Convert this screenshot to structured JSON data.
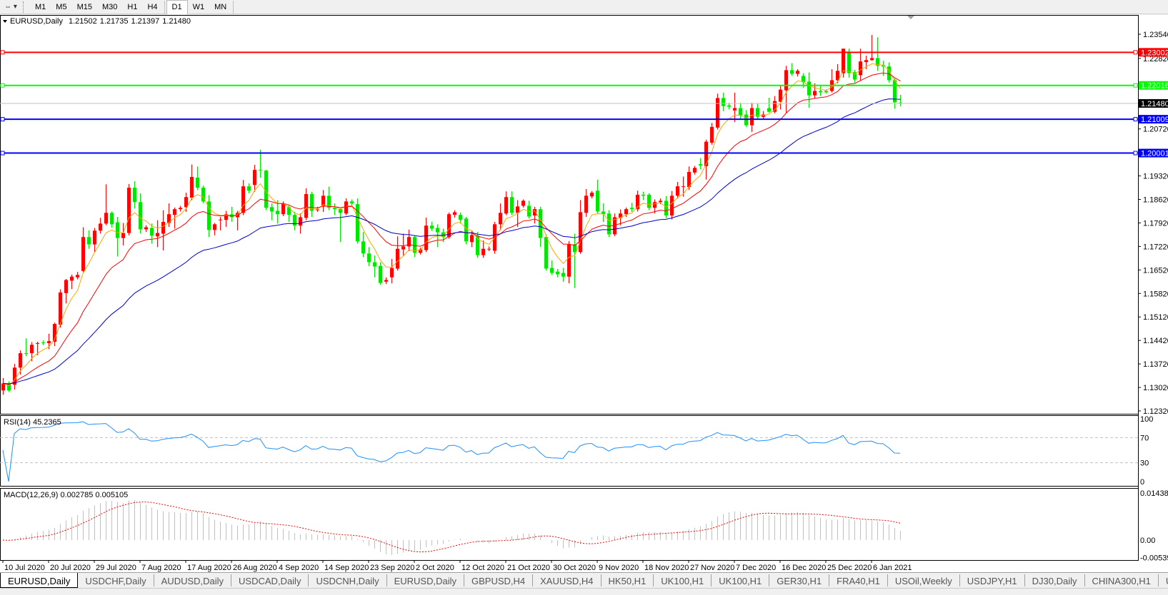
{
  "toolbar": {
    "timeframes": [
      "M1",
      "M5",
      "M15",
      "M30",
      "H1",
      "H4",
      "D1",
      "W1",
      "MN"
    ],
    "active": "D1"
  },
  "chart_header": {
    "symbol": "EURUSD,Daily",
    "open": "1.21502",
    "high": "1.21735",
    "low": "1.21397",
    "close": "1.21480"
  },
  "colors": {
    "bull": "#ff0000",
    "bear": "#00e600",
    "ma_fast": "#ffa500",
    "ma_mid": "#ff0000",
    "ma_slow": "#0000c8",
    "rsi": "#1e90ff",
    "macd_hist": "#c0c0c0",
    "macd_signal": "#ff0000"
  },
  "levels": [
    {
      "price": 1.23002,
      "label": "1.23002",
      "color": "#ff0000"
    },
    {
      "price": 1.22016,
      "label": "1.22016",
      "color": "#00ff00"
    },
    {
      "price": 1.21009,
      "label": "1.21009",
      "color": "#0000ff"
    },
    {
      "price": 1.20001,
      "label": "1.20001",
      "color": "#0000ff"
    }
  ],
  "current_price": {
    "price": 1.2148,
    "label": "1.21480"
  },
  "rsi": {
    "label": "RSI(14) 45.2365",
    "axis": [
      "100",
      "70",
      "30",
      "0"
    ]
  },
  "macd": {
    "label": "MACD(12,26,9) 0.002785 0.005105",
    "axis": [
      "0.014384",
      "0.00",
      "-0.00539"
    ]
  },
  "chart_data": {
    "type": "candlestick",
    "title": "EURUSD,Daily",
    "y_ticks": [
      "1.23540",
      "1.22820",
      "1.20720",
      "1.19320",
      "1.18620",
      "1.17920",
      "1.17220",
      "1.16520",
      "1.15820",
      "1.15120",
      "1.14420",
      "1.13720",
      "1.13020",
      "1.12320"
    ],
    "ylim": [
      1.1232,
      1.2354
    ],
    "x_labels": [
      "10 Jul 2020",
      "20 Jul 2020",
      "29 Jul 2020",
      "7 Aug 2020",
      "17 Aug 2020",
      "26 Aug 2020",
      "4 Sep 2020",
      "14 Sep 2020",
      "23 Sep 2020",
      "2 Oct 2020",
      "12 Oct 2020",
      "21 Oct 2020",
      "30 Oct 2020",
      "9 Nov 2020",
      "18 Nov 2020",
      "27 Nov 2020",
      "7 Dec 2020",
      "16 Dec 2020",
      "25 Dec 2020",
      "6 Jan 2021"
    ],
    "ohlc_fields": [
      "open",
      "high",
      "low",
      "close"
    ],
    "candles": [
      [
        1.1293,
        1.133,
        1.128,
        1.1314
      ],
      [
        1.1314,
        1.132,
        1.1288,
        1.1293
      ],
      [
        1.131,
        1.1372,
        1.1296,
        1.1361
      ],
      [
        1.1361,
        1.1412,
        1.134,
        1.1404
      ],
      [
        1.1404,
        1.1448,
        1.1395,
        1.1402
      ],
      [
        1.1404,
        1.1437,
        1.138,
        1.1429
      ],
      [
        1.1432,
        1.1438,
        1.1398,
        1.1434
      ],
      [
        1.1436,
        1.1442,
        1.1428,
        1.1435
      ],
      [
        1.1434,
        1.1462,
        1.1416,
        1.144
      ],
      [
        1.1438,
        1.1495,
        1.1425,
        1.1491
      ],
      [
        1.1489,
        1.1594,
        1.148,
        1.1585
      ],
      [
        1.1583,
        1.1625,
        1.1552,
        1.1622
      ],
      [
        1.162,
        1.1638,
        1.1595,
        1.1632
      ],
      [
        1.163,
        1.1646,
        1.1624,
        1.1637
      ],
      [
        1.1649,
        1.1779,
        1.1643,
        1.175
      ],
      [
        1.175,
        1.177,
        1.1715,
        1.1728
      ],
      [
        1.1728,
        1.1777,
        1.1705,
        1.1769
      ],
      [
        1.1769,
        1.1807,
        1.176,
        1.179
      ],
      [
        1.179,
        1.1907,
        1.1785,
        1.1822
      ],
      [
        1.1822,
        1.1826,
        1.1778,
        1.1788
      ],
      [
        1.1794,
        1.181,
        1.1692,
        1.1747
      ],
      [
        1.1747,
        1.1792,
        1.1725,
        1.1762
      ],
      [
        1.1762,
        1.1908,
        1.1755,
        1.1897
      ],
      [
        1.1897,
        1.1916,
        1.1835,
        1.1854
      ],
      [
        1.1854,
        1.188,
        1.176,
        1.1773
      ],
      [
        1.1773,
        1.1785,
        1.1765,
        1.1779
      ],
      [
        1.1777,
        1.179,
        1.173,
        1.1754
      ],
      [
        1.1752,
        1.18,
        1.172,
        1.1762
      ],
      [
        1.176,
        1.183,
        1.171,
        1.1795
      ],
      [
        1.1792,
        1.185,
        1.178,
        1.1818
      ],
      [
        1.1816,
        1.1838,
        1.1775,
        1.1833
      ],
      [
        1.1833,
        1.1843,
        1.1826,
        1.1837
      ],
      [
        1.1839,
        1.1882,
        1.1825,
        1.1869
      ],
      [
        1.1867,
        1.1966,
        1.186,
        1.1929
      ],
      [
        1.1927,
        1.196,
        1.189,
        1.1897
      ],
      [
        1.1897,
        1.1903,
        1.185,
        1.1856
      ],
      [
        1.1856,
        1.1875,
        1.175,
        1.1771
      ],
      [
        1.1771,
        1.1792,
        1.1755,
        1.1788
      ],
      [
        1.1801,
        1.181,
        1.177,
        1.1802
      ],
      [
        1.1801,
        1.1828,
        1.178,
        1.1818
      ],
      [
        1.1818,
        1.184,
        1.1795,
        1.1809
      ],
      [
        1.1809,
        1.1828,
        1.177,
        1.1822
      ],
      [
        1.1822,
        1.192,
        1.1815,
        1.1901
      ],
      [
        1.1901,
        1.191,
        1.188,
        1.1888
      ],
      [
        1.1905,
        1.1965,
        1.1885,
        1.195
      ],
      [
        1.195,
        1.201,
        1.1927,
        1.1948
      ],
      [
        1.1948,
        1.195,
        1.183,
        1.1837
      ],
      [
        1.1839,
        1.185,
        1.18,
        1.1826
      ],
      [
        1.1828,
        1.186,
        1.179,
        1.1818
      ],
      [
        1.1818,
        1.1856,
        1.1812,
        1.185
      ],
      [
        1.1839,
        1.1845,
        1.1795,
        1.1816
      ],
      [
        1.1816,
        1.1825,
        1.177,
        1.1784
      ],
      [
        1.1784,
        1.182,
        1.176,
        1.1809
      ],
      [
        1.1807,
        1.1895,
        1.18,
        1.1878
      ],
      [
        1.1878,
        1.1885,
        1.181,
        1.1828
      ],
      [
        1.1831,
        1.184,
        1.1825,
        1.1832
      ],
      [
        1.1843,
        1.189,
        1.1825,
        1.1873
      ],
      [
        1.1873,
        1.19,
        1.183,
        1.1837
      ],
      [
        1.1837,
        1.185,
        1.1815,
        1.1833
      ],
      [
        1.1833,
        1.1835,
        1.1735,
        1.1822
      ],
      [
        1.182,
        1.1865,
        1.1815,
        1.1856
      ],
      [
        1.1856,
        1.1862,
        1.1845,
        1.185
      ],
      [
        1.1848,
        1.1865,
        1.173,
        1.1737
      ],
      [
        1.1737,
        1.1765,
        1.169,
        1.1701
      ],
      [
        1.1701,
        1.172,
        1.1663,
        1.1675
      ],
      [
        1.1675,
        1.1695,
        1.163,
        1.1662
      ],
      [
        1.1664,
        1.1675,
        1.1608,
        1.1613
      ],
      [
        1.1617,
        1.163,
        1.161,
        1.1622
      ],
      [
        1.163,
        1.1685,
        1.1612,
        1.1658
      ],
      [
        1.1656,
        1.1752,
        1.165,
        1.1715
      ],
      [
        1.1713,
        1.176,
        1.1695,
        1.1722
      ],
      [
        1.1722,
        1.1772,
        1.1708,
        1.175
      ],
      [
        1.175,
        1.1755,
        1.169,
        1.1703
      ],
      [
        1.1703,
        1.1718,
        1.1698,
        1.1713
      ],
      [
        1.1711,
        1.1808,
        1.1705,
        1.1784
      ],
      [
        1.1784,
        1.1796,
        1.1768,
        1.1775
      ],
      [
        1.1777,
        1.1788,
        1.172,
        1.1764
      ],
      [
        1.1764,
        1.1775,
        1.1735,
        1.175
      ],
      [
        1.175,
        1.1823,
        1.1745,
        1.1818
      ],
      [
        1.1816,
        1.183,
        1.1808,
        1.1824
      ],
      [
        1.1816,
        1.1823,
        1.179,
        1.1801
      ],
      [
        1.1805,
        1.181,
        1.1728,
        1.1737
      ],
      [
        1.1735,
        1.177,
        1.172,
        1.1756
      ],
      [
        1.1754,
        1.1765,
        1.1688,
        1.1696
      ],
      [
        1.1696,
        1.174,
        1.1688,
        1.1715
      ],
      [
        1.1713,
        1.1722,
        1.1708,
        1.1715
      ],
      [
        1.1709,
        1.1795,
        1.17,
        1.1788
      ],
      [
        1.1788,
        1.185,
        1.177,
        1.1822
      ],
      [
        1.182,
        1.1886,
        1.1815,
        1.1869
      ],
      [
        1.1869,
        1.1886,
        1.1815,
        1.1822
      ],
      [
        1.1822,
        1.186,
        1.178,
        1.1841
      ],
      [
        1.1843,
        1.1862,
        1.1838,
        1.1858
      ],
      [
        1.1843,
        1.1858,
        1.1805,
        1.1811
      ],
      [
        1.1814,
        1.184,
        1.179,
        1.1833
      ],
      [
        1.1833,
        1.184,
        1.172,
        1.1747
      ],
      [
        1.175,
        1.1758,
        1.165,
        1.1656
      ],
      [
        1.1658,
        1.168,
        1.1637,
        1.1643
      ],
      [
        1.1647,
        1.1655,
        1.163,
        1.1639
      ],
      [
        1.1643,
        1.1658,
        1.1617,
        1.1632
      ],
      [
        1.1632,
        1.1738,
        1.1612,
        1.1728
      ],
      [
        1.1728,
        1.176,
        1.1598,
        1.1705
      ],
      [
        1.1705,
        1.186,
        1.17,
        1.1824
      ],
      [
        1.1822,
        1.1893,
        1.181,
        1.1873
      ],
      [
        1.1871,
        1.1887,
        1.1865,
        1.1882
      ],
      [
        1.1888,
        1.1921,
        1.182,
        1.1826
      ],
      [
        1.1826,
        1.185,
        1.1795,
        1.1818
      ],
      [
        1.182,
        1.183,
        1.175,
        1.1758
      ],
      [
        1.1758,
        1.182,
        1.1752,
        1.1809
      ],
      [
        1.1807,
        1.1832,
        1.1785,
        1.182
      ],
      [
        1.1818,
        1.1838,
        1.181,
        1.1833
      ],
      [
        1.1837,
        1.1852,
        1.1825,
        1.1833
      ],
      [
        1.1833,
        1.1888,
        1.1826,
        1.1876
      ],
      [
        1.1876,
        1.1885,
        1.186,
        1.1873
      ],
      [
        1.1876,
        1.188,
        1.183,
        1.1837
      ],
      [
        1.1837,
        1.1862,
        1.182,
        1.1854
      ],
      [
        1.1854,
        1.1865,
        1.1848,
        1.1858
      ],
      [
        1.1858,
        1.1872,
        1.1806,
        1.1814
      ],
      [
        1.1814,
        1.1887,
        1.1802,
        1.1873
      ],
      [
        1.1873,
        1.1914,
        1.1865,
        1.1901
      ],
      [
        1.1901,
        1.193,
        1.187,
        1.1901
      ],
      [
        1.1899,
        1.196,
        1.189,
        1.1944
      ],
      [
        1.1942,
        1.1962,
        1.1936,
        1.1956
      ],
      [
        1.1967,
        1.1985,
        1.1952,
        1.1963
      ],
      [
        1.1961,
        1.204,
        1.1921,
        1.2034
      ],
      [
        1.2031,
        1.209,
        1.2025,
        1.2078
      ],
      [
        1.2076,
        1.2177,
        1.207,
        1.2164
      ],
      [
        1.2164,
        1.218,
        1.2125,
        1.214
      ],
      [
        1.2142,
        1.215,
        1.213,
        1.2138
      ],
      [
        1.2127,
        1.218,
        1.2092,
        1.2134
      ],
      [
        1.2134,
        1.215,
        1.21,
        1.2112
      ],
      [
        1.2115,
        1.2128,
        1.2078,
        1.2083
      ],
      [
        1.2083,
        1.215,
        1.2063,
        1.2134
      ],
      [
        1.2134,
        1.2148,
        1.21,
        1.2108
      ],
      [
        1.2108,
        1.2125,
        1.21,
        1.2115
      ],
      [
        1.2134,
        1.2165,
        1.212,
        1.2123
      ],
      [
        1.2123,
        1.217,
        1.2118,
        1.2155
      ],
      [
        1.2153,
        1.22,
        1.213,
        1.2189
      ],
      [
        1.2187,
        1.226,
        1.212,
        1.2247
      ],
      [
        1.2247,
        1.2268,
        1.223,
        1.2236
      ],
      [
        1.2236,
        1.225,
        1.2228,
        1.2245
      ],
      [
        1.223,
        1.2238,
        1.2195,
        1.2211
      ],
      [
        1.2213,
        1.224,
        1.2135,
        1.2172
      ],
      [
        1.2172,
        1.2208,
        1.2163,
        1.2185
      ],
      [
        1.2185,
        1.2203,
        1.217,
        1.2181
      ],
      [
        1.2185,
        1.219,
        1.2178,
        1.2181
      ],
      [
        1.2185,
        1.225,
        1.218,
        1.2217
      ],
      [
        1.2217,
        1.2265,
        1.2208,
        1.2245
      ],
      [
        1.2238,
        1.2311,
        1.2225,
        1.2311
      ],
      [
        1.2302,
        1.2311,
        1.2225,
        1.2238
      ],
      [
        1.2241,
        1.2248,
        1.221,
        1.2219
      ],
      [
        1.2232,
        1.2311,
        1.2215,
        1.2273
      ],
      [
        1.2271,
        1.229,
        1.225,
        1.2277
      ],
      [
        1.2277,
        1.2352,
        1.2275,
        1.2283
      ],
      [
        1.2283,
        1.2345,
        1.2245,
        1.226
      ],
      [
        1.2262,
        1.2275,
        1.223,
        1.2258
      ],
      [
        1.2258,
        1.227,
        1.221,
        1.2217
      ],
      [
        1.2217,
        1.2222,
        1.2132,
        1.2151
      ],
      [
        1.21502,
        1.21735,
        1.21397,
        1.2148
      ]
    ]
  },
  "tabs": [
    "EURUSD,Daily",
    "USDCHF,Daily",
    "AUDUSD,Daily",
    "USDCAD,Daily",
    "USDCNH,Daily",
    "EURUSD,Daily",
    "GBPUSD,H4",
    "XAUUSD,H4",
    "HK50,H1",
    "UK100,H1",
    "UK100,H1",
    "GER30,H1",
    "FRA40,H1",
    "USOil,Weekly",
    "USDJPY,H1",
    "DJ30,Daily",
    "CHINA300,H1",
    "USOil,"
  ],
  "tab_scroll": {
    "left": "◂",
    "right": "▸"
  }
}
